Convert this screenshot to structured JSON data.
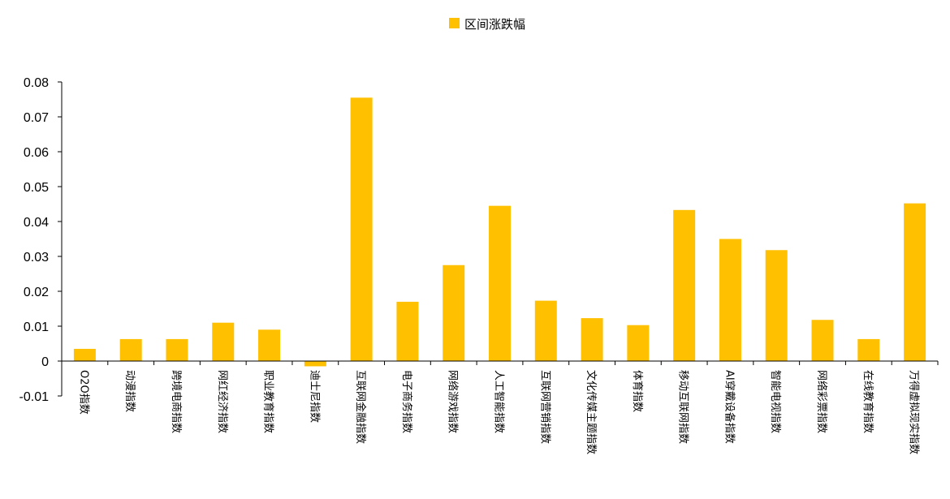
{
  "chart_data": {
    "type": "bar",
    "legend": {
      "label": "区间涨跌幅",
      "position": "top-center"
    },
    "colors": {
      "bar": "#FFC000",
      "axis": "#000000"
    },
    "grid": false,
    "ylim": [
      -0.01,
      0.08
    ],
    "yticks": [
      "0.08",
      "0.07",
      "0.06",
      "0.05",
      "0.04",
      "0.03",
      "0.02",
      "0.01",
      "0",
      "-0.01"
    ],
    "ytick_values": [
      0.08,
      0.07,
      0.06,
      0.05,
      0.04,
      0.03,
      0.02,
      0.01,
      0,
      -0.01
    ],
    "categories": [
      "O2O指数",
      "动漫指数",
      "跨境电商指数",
      "网红经济指数",
      "职业教育指数",
      "迪士尼指数",
      "互联网金融指数",
      "电子商务指数",
      "网络游戏指数",
      "人工智能指数",
      "互联网营销指数",
      "文化传媒主题指数",
      "体育指数",
      "移动互联网指数",
      "AI穿戴设备指数",
      "智能电视指数",
      "网络彩票指数",
      "在线教育指数",
      "万得虚拟现实指数"
    ],
    "series": [
      {
        "name": "区间涨跌幅",
        "values": [
          0.0035,
          0.0063,
          0.0063,
          0.011,
          0.009,
          -0.0015,
          0.0755,
          0.017,
          0.0275,
          0.0445,
          0.0173,
          0.0123,
          0.0103,
          0.0433,
          0.035,
          0.0318,
          0.0118,
          0.0063,
          0.0452
        ]
      }
    ]
  }
}
